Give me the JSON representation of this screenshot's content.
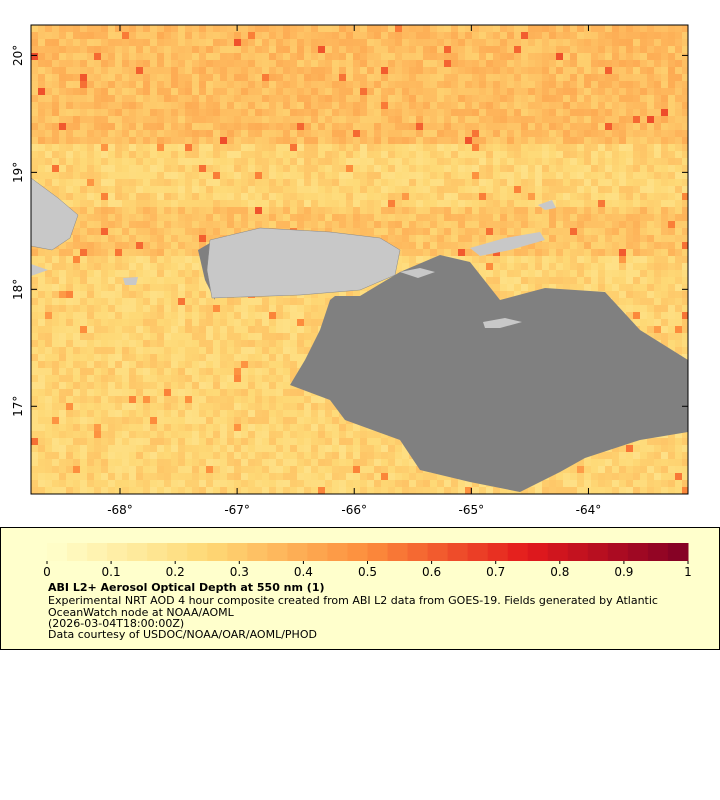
{
  "map": {
    "xlim": [
      -68.76,
      -63.15
    ],
    "ylim": [
      16.25,
      20.26
    ],
    "xticks": [
      {
        "value": -68,
        "label": "-68°"
      },
      {
        "value": -67,
        "label": "-67°"
      },
      {
        "value": -66,
        "label": "-66°"
      },
      {
        "value": -65,
        "label": "-65°"
      },
      {
        "value": -64,
        "label": "-64°"
      }
    ],
    "yticks": [
      {
        "value": 17,
        "label": "17°"
      },
      {
        "value": 18,
        "label": "18°"
      },
      {
        "value": 19,
        "label": "19°"
      },
      {
        "value": 20,
        "label": "20°"
      }
    ]
  },
  "legend": {
    "title": "ABI L2+ Aerosol Optical Depth at 550 nm (1)",
    "lines": [
      "Experimental NRT AOD 4 hour composite created from ABI L2 data from GOES-19. Fields generated by Atlantic",
      "OceanWatch node at NOAA/AOML",
      "(2026-03-04T18:00:00Z)",
      "Data courtesy of USDOC/NOAA/OAR/AOML/PHOD"
    ],
    "colorbar": {
      "range": [
        0,
        1
      ],
      "ticks": [
        0,
        0.1,
        0.2,
        0.3,
        0.4,
        0.5,
        0.6,
        0.7,
        0.8,
        0.9,
        1
      ]
    }
  }
}
